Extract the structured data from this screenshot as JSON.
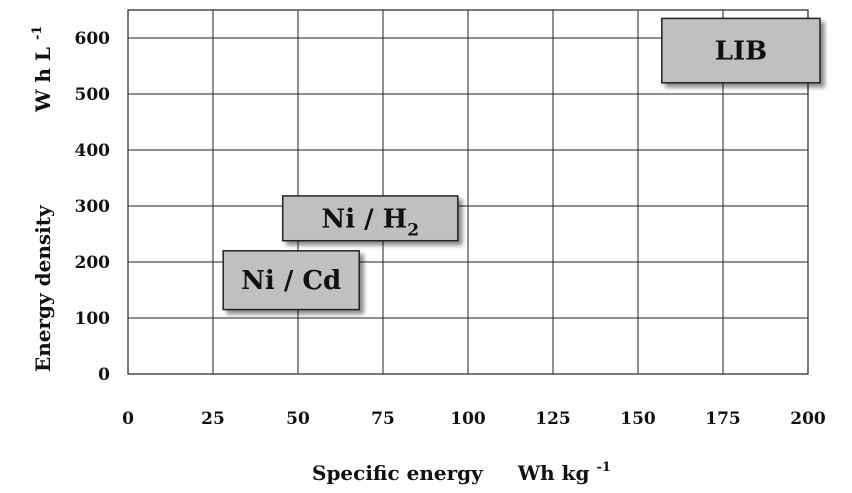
{
  "chart_data": {
    "type": "scatter",
    "title": "",
    "xlabel": "Specific energy",
    "xunit": "Wh kg",
    "xunit_sup": "-1",
    "ylabel": "Energy density",
    "yunit": "W h L",
    "yunit_sup": "-1",
    "xlim": [
      0,
      200
    ],
    "ylim": [
      0,
      650
    ],
    "x_ticks": [
      0,
      25,
      50,
      75,
      100,
      125,
      150,
      175,
      200
    ],
    "y_ticks": [
      0,
      100,
      200,
      300,
      400,
      500,
      600
    ],
    "grid": true,
    "regions": [
      {
        "name": "LIB",
        "label": "LIB",
        "label_sub": "",
        "x": [
          157,
          204
        ],
        "y": [
          520,
          635
        ],
        "color": "#c0c0c0"
      },
      {
        "name": "Ni / H2",
        "label": "Ni / H",
        "label_sub": "2",
        "x": [
          45.5,
          97
        ],
        "y": [
          238,
          318
        ],
        "color": "#c0c0c0"
      },
      {
        "name": "Ni / Cd",
        "label": "Ni / Cd",
        "label_sub": "",
        "x": [
          28,
          68
        ],
        "y": [
          115,
          220
        ],
        "color": "#c0c0c0"
      }
    ],
    "colors": {
      "region_fill": "#c0c0c0",
      "region_stroke": "#222222",
      "grid": "#222222"
    }
  }
}
